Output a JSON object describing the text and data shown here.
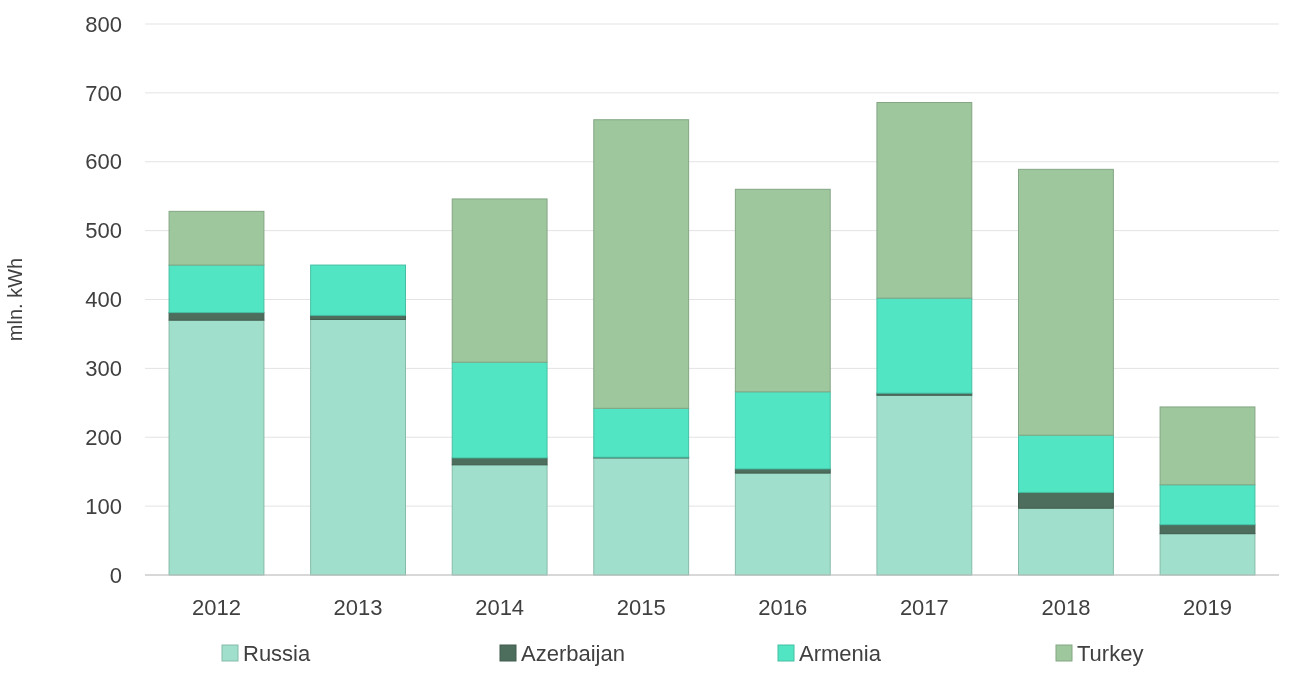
{
  "chart_data": {
    "type": "bar",
    "stacked": true,
    "ylabel": "mln. kWh",
    "categories": [
      "2012",
      "2013",
      "2014",
      "2015",
      "2016",
      "2017",
      "2018",
      "2019"
    ],
    "series": [
      {
        "name": "Russia",
        "color": "#a0dfcb",
        "values": [
          370,
          371,
          160,
          170,
          148,
          261,
          97,
          60
        ]
      },
      {
        "name": "Azerbaijan",
        "color": "#4e6e5d",
        "values": [
          11,
          6,
          10,
          1,
          6,
          3,
          23,
          13
        ]
      },
      {
        "name": "Armenia",
        "color": "#52e5c4",
        "values": [
          69,
          73,
          139,
          71,
          112,
          138,
          83,
          58
        ]
      },
      {
        "name": "Turkey",
        "color": "#9ec79e",
        "values": [
          78,
          0,
          237,
          419,
          294,
          284,
          386,
          113
        ]
      }
    ],
    "ylim": [
      0,
      800
    ],
    "yticks": [
      0,
      100,
      200,
      300,
      400,
      500,
      600,
      700,
      800
    ],
    "grid": "y",
    "legend": "bottom"
  }
}
